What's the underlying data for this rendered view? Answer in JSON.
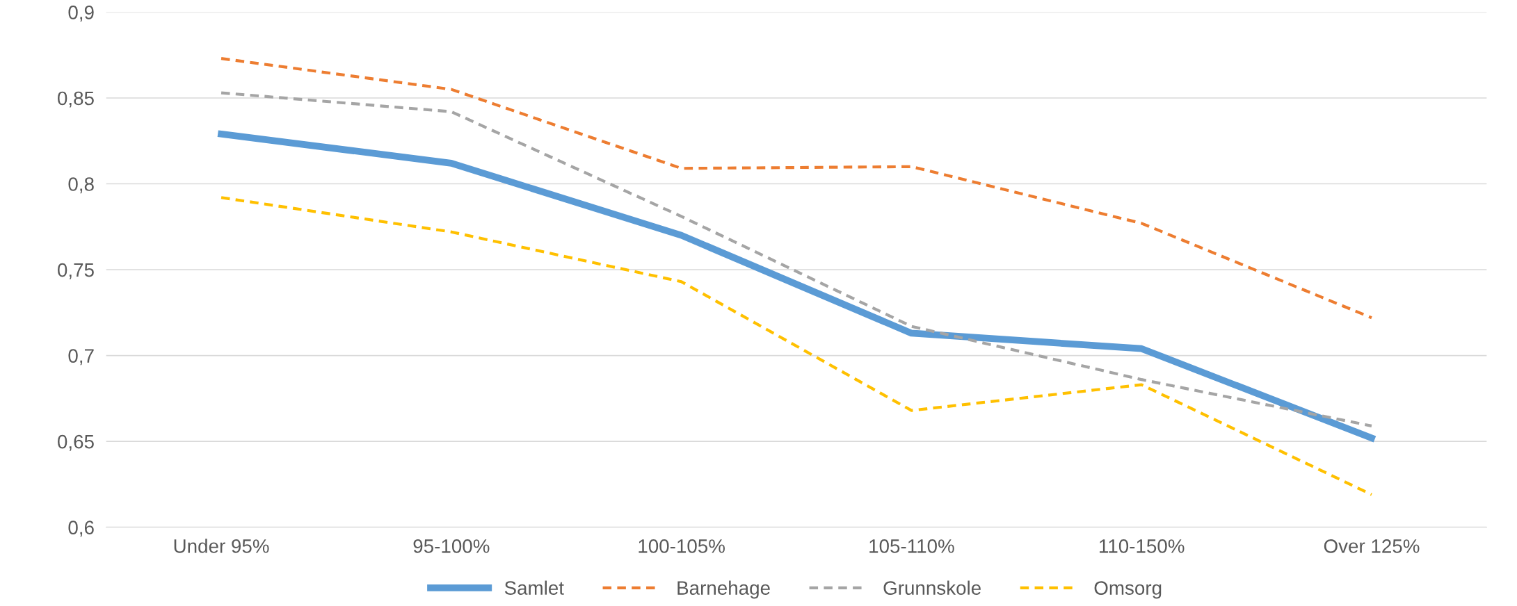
{
  "chart_data": {
    "type": "line",
    "categories": [
      "Under 95%",
      "95-100%",
      "100-105%",
      "105-110%",
      "110-150%",
      "Over 125%"
    ],
    "series": [
      {
        "name": "Samlet",
        "color": "#5b9bd5",
        "line_style": "solid",
        "values": [
          0.829,
          0.812,
          0.77,
          0.713,
          0.704,
          0.652
        ]
      },
      {
        "name": "Barnehage",
        "color": "#ed7d31",
        "line_style": "dashed",
        "values": [
          0.873,
          0.855,
          0.809,
          0.81,
          0.777,
          0.722
        ]
      },
      {
        "name": "Grunnskole",
        "color": "#a5a5a5",
        "line_style": "dashed",
        "values": [
          0.853,
          0.842,
          0.781,
          0.717,
          0.686,
          0.659
        ]
      },
      {
        "name": "Omsorg",
        "color": "#ffc000",
        "line_style": "dashed",
        "values": [
          0.792,
          0.772,
          0.743,
          0.668,
          0.683,
          0.619
        ]
      }
    ],
    "ylim": [
      0.6,
      0.9
    ],
    "yticks": [
      {
        "value": 0.6,
        "label": "0,6"
      },
      {
        "value": 0.65,
        "label": "0,65"
      },
      {
        "value": 0.7,
        "label": "0,7"
      },
      {
        "value": 0.75,
        "label": "0,75"
      },
      {
        "value": 0.8,
        "label": "0,8"
      },
      {
        "value": 0.85,
        "label": "0,85"
      },
      {
        "value": 0.9,
        "label": "0,9"
      }
    ],
    "grid": "y",
    "legend": "bottom",
    "marker": "none"
  }
}
